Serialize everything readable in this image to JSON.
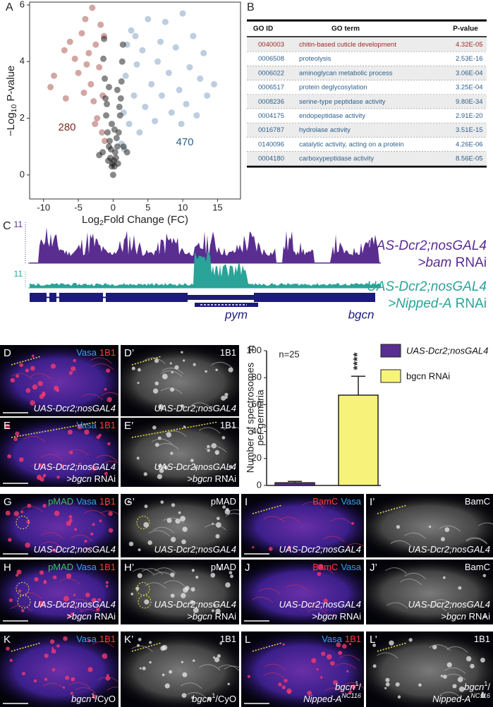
{
  "chart_data": [
    {
      "type": "scatter",
      "letter": "A",
      "x_label": [
        {
          "text": "Log"
        },
        {
          "text": "2",
          "sub": true
        },
        {
          "text": "Fold Change (FC)"
        }
      ],
      "y_label": [
        {
          "text": "−Log"
        },
        {
          "text": "10",
          "sub": true
        },
        {
          "text": " P-value"
        }
      ],
      "xlim": [
        -12,
        18.3
      ],
      "ylim": [
        -0.85,
        6.1
      ],
      "xticks": [
        -10,
        -5,
        0,
        5,
        10,
        15
      ],
      "yticks": [
        0,
        2,
        4,
        6
      ],
      "annotations": [
        {
          "text": "280",
          "color": "#7d2a20"
        },
        {
          "text": "470",
          "color": "#2c5f8c"
        }
      ],
      "series": [
        {
          "color": "#9e3a33",
          "x": [
            -9,
            -8.5,
            -7,
            -6.2,
            -5.5,
            -5,
            -4.5,
            -4,
            -3.5,
            -3.2,
            -3,
            -2.8,
            -2.5,
            -2.3,
            -2,
            -1.8,
            -1.6,
            -1.5,
            -1.3,
            -1.2,
            -4.2,
            -6.8,
            -2.6,
            -3.8
          ],
          "values": [
            3.1,
            3.5,
            4.4,
            4.7,
            4.1,
            3.6,
            5.0,
            5.5,
            4.3,
            3.2,
            5.9,
            2.6,
            4.6,
            2.0,
            3.8,
            5.3,
            1.5,
            2.8,
            4.9,
            1.2,
            2.9,
            2.7,
            1.8,
            3.9
          ]
        },
        {
          "color": "#6a92b8",
          "x": [
            1.2,
            1.5,
            1.8,
            2,
            2.3,
            2.6,
            3,
            3.4,
            3.8,
            4.2,
            4.6,
            5,
            5.5,
            6,
            6.4,
            7,
            7.5,
            8,
            8.4,
            9,
            9.5,
            10,
            10.5,
            11,
            11.5,
            12,
            12.5,
            13,
            13.5,
            14.5,
            3.2,
            6.8,
            9.8,
            1.6
          ],
          "values": [
            1.1,
            2.2,
            3.5,
            4.6,
            1.8,
            5.1,
            2.8,
            3.9,
            1.5,
            4.4,
            2.4,
            5.5,
            3.2,
            1.9,
            4.0,
            2.8,
            5.4,
            3.6,
            2.2,
            4.5,
            3.0,
            5.7,
            2.5,
            3.8,
            4.9,
            2.1,
            3.4,
            4.3,
            2.8,
            3.2,
            4.9,
            4.7,
            1.8,
            0.9
          ]
        },
        {
          "color": "#111111",
          "x": [
            0,
            0.2,
            -0.2,
            0.4,
            -0.4,
            0.6,
            -0.6,
            0.8,
            -0.8,
            1,
            -1,
            1.1,
            -1.1,
            1.2,
            -1.2,
            1.3,
            -1.4,
            0.9,
            -0.9,
            0.5,
            -0.5,
            0.3,
            -0.3,
            0.1,
            -0.1,
            0.7,
            -0.7,
            1.5,
            -1.5,
            1.4,
            -1.3,
            0.2,
            -0.2,
            0.6,
            -0.6,
            2.0,
            -2.0
          ],
          "values": [
            0,
            0.3,
            0.3,
            0.6,
            0.6,
            1.0,
            1.0,
            1.5,
            1.5,
            2.1,
            2.1,
            2.7,
            2.7,
            3.3,
            3.4,
            4.0,
            4.1,
            2.4,
            2.5,
            1.3,
            1.2,
            0.8,
            0.9,
            0.5,
            0.4,
            0.4,
            0.5,
            1.0,
            0.8,
            4.6,
            4.8,
            1.6,
            1.8,
            3.0,
            3.1,
            0.8,
            0.7
          ]
        }
      ]
    },
    {
      "type": "bar",
      "letter": "F",
      "y_label": [
        "Number of spectrosomes",
        "per germaria"
      ],
      "annotations": [
        "n=25",
        "****"
      ],
      "ylim": [
        0,
        100
      ],
      "yticks": [
        0,
        20,
        40,
        60,
        80,
        100
      ],
      "series": [
        {
          "name": "UAS-Dcr2;nosGAL4",
          "color": "#5a2d91",
          "values": [
            2
          ],
          "errors": [
            1
          ]
        },
        {
          "name": "bgcn RNAi",
          "color": "#f7f37a",
          "values": [
            67
          ],
          "errors": [
            14
          ]
        }
      ]
    }
  ],
  "go_table": {
    "letter": "B",
    "header": [
      "GO ID",
      "GO term",
      "P-value"
    ],
    "rows": [
      [
        "0040003",
        "chitin-based cuticle development",
        "4.32E-05"
      ],
      [
        "0006508",
        "proteolysis",
        "2.53E-16"
      ],
      [
        "0006022",
        "aminoglycan metabolic process",
        "3.06E-04"
      ],
      [
        "0006517",
        "protein deglycosylation",
        "3.25E-04"
      ],
      [
        "0008236",
        "serine-type peptidase activity",
        "9.80E-34"
      ],
      [
        "0004175",
        "endopeptidase activity",
        "2.91E-20"
      ],
      [
        "0016787",
        "hydrolase activity",
        "3.51E-15"
      ],
      [
        "0140096",
        "catalytic activity, acting on a protein",
        "4.26E-06"
      ],
      [
        "0004180",
        "carboxypeptidase activity",
        "8.56E-05"
      ]
    ],
    "row_colors": [
      "#9a2a22",
      "#2c5f8c",
      "#2c5f8c",
      "#2c5f8c",
      "#2c5f8c",
      "#2c5f8c",
      "#2c5f8c",
      "#2c5f8c",
      "#2c5f8c"
    ]
  },
  "tracks": {
    "letter": "C",
    "items": [
      {
        "max_label": "11",
        "color": "#5a2d91",
        "label": [
          [
            {
              "text": "UAS-Dcr2;nosGAL4",
              "italic": true
            }
          ],
          [
            {
              "text": ">bam",
              "italic": true
            },
            {
              "text": " RNAi"
            }
          ]
        ]
      },
      {
        "max_label": "11",
        "color": "#2aa398",
        "label": [
          [
            {
              "text": "UAS-Dcr2;nosGAL4",
              "italic": true
            }
          ],
          [
            {
              "text": ">Nipped-A",
              "italic": true
            },
            {
              "text": " RNAi"
            }
          ]
        ]
      }
    ],
    "genes": [
      "pym",
      "bgcn"
    ]
  },
  "panels": [
    {
      "letter": "D",
      "channels": [
        {
          "text": "Vasa",
          "color": "#39a2f0"
        },
        {
          "text": "1B1",
          "color": "#ff3b3b"
        }
      ],
      "genotype": [
        [
          {
            "text": "UAS-Dcr2;nosGAL4",
            "italic": true
          }
        ]
      ]
    },
    {
      "letter": "D’",
      "channels": [
        {
          "text": "1B1",
          "color": "#ffffff"
        }
      ],
      "genotype": [
        [
          {
            "text": "UAS-Dcr2;nosGAL4",
            "italic": true
          }
        ]
      ]
    },
    {
      "letter": "E",
      "channels": [
        {
          "text": "Vasa",
          "color": "#39a2f0"
        },
        {
          "text": "1B1",
          "color": "#ff3b3b"
        }
      ],
      "genotype": [
        [
          {
            "text": "UAS-Dcr2;nosGAL4",
            "italic": true
          }
        ],
        [
          {
            "text": ">bgcn",
            "italic": true
          },
          {
            "text": " RNAi"
          }
        ]
      ]
    },
    {
      "letter": "E’",
      "channels": [
        {
          "text": "1B1",
          "color": "#ffffff"
        }
      ],
      "genotype": [
        [
          {
            "text": "UAS-Dcr2;nosGAL4",
            "italic": true
          }
        ],
        [
          {
            "text": ">bgcn",
            "italic": true
          },
          {
            "text": " RNAi"
          }
        ]
      ]
    },
    {
      "letter": "G",
      "channels": [
        {
          "text": "pMAD",
          "color": "#3cc060"
        },
        {
          "text": "Vasa",
          "color": "#39a2f0"
        },
        {
          "text": "1B1",
          "color": "#ff3b3b"
        }
      ],
      "genotype": [
        [
          {
            "text": "UAS-Dcr2;nosGAL4",
            "italic": true
          }
        ]
      ]
    },
    {
      "letter": "G’",
      "channels": [
        {
          "text": "pMAD",
          "color": "#ffffff"
        }
      ],
      "genotype": [
        [
          {
            "text": "UAS-Dcr2;nosGAL4",
            "italic": true
          }
        ]
      ]
    },
    {
      "letter": "H",
      "channels": [
        {
          "text": "pMAD",
          "color": "#3cc060"
        },
        {
          "text": "Vasa",
          "color": "#39a2f0"
        },
        {
          "text": "1B1",
          "color": "#ff3b3b"
        }
      ],
      "genotype": [
        [
          {
            "text": "UAS-Dcr2;nosGAL4",
            "italic": true
          }
        ],
        [
          {
            "text": ">bgcn",
            "italic": true
          },
          {
            "text": " RNAi"
          }
        ]
      ]
    },
    {
      "letter": "H’",
      "channels": [
        {
          "text": "pMAD",
          "color": "#ffffff"
        }
      ],
      "genotype": [
        [
          {
            "text": "UAS-Dcr2;nosGAL4",
            "italic": true
          }
        ],
        [
          {
            "text": ">bgcn",
            "italic": true
          },
          {
            "text": " RNAi"
          }
        ]
      ]
    },
    {
      "letter": "I",
      "channels": [
        {
          "text": "BamC",
          "color": "#ff3b3b"
        },
        {
          "text": "Vasa",
          "color": "#39a2f0"
        }
      ],
      "genotype": [
        [
          {
            "text": "UAS-Dcr2;nosGAL4",
            "italic": true
          }
        ]
      ]
    },
    {
      "letter": "I’",
      "channels": [
        {
          "text": "BamC",
          "color": "#ffffff"
        }
      ],
      "genotype": [
        [
          {
            "text": "UAS-Dcr2;nosGAL4",
            "italic": true
          }
        ]
      ]
    },
    {
      "letter": "J",
      "channels": [
        {
          "text": "BamC",
          "color": "#ff3b3b"
        },
        {
          "text": "Vasa",
          "color": "#39a2f0"
        }
      ],
      "genotype": [
        [
          {
            "text": "UAS-Dcr2;nosGAL4",
            "italic": true
          }
        ],
        [
          {
            "text": ">bgcn",
            "italic": true
          },
          {
            "text": " RNAi"
          }
        ]
      ]
    },
    {
      "letter": "J’",
      "channels": [
        {
          "text": "BamC",
          "color": "#ffffff"
        }
      ],
      "genotype": [
        [
          {
            "text": "UAS-Dcr2;nosGAL4",
            "italic": true
          }
        ],
        [
          {
            "text": ">bgcn",
            "italic": true
          },
          {
            "text": " RNAi"
          }
        ]
      ]
    },
    {
      "letter": "K",
      "channels": [
        {
          "text": "Vasa",
          "color": "#39a2f0"
        },
        {
          "text": "1B1",
          "color": "#ff3b3b"
        }
      ],
      "genotype": [
        [
          {
            "text": "bgcn",
            "italic": true
          },
          {
            "text": "1",
            "sup": true
          },
          {
            "text": "/CyO"
          }
        ]
      ]
    },
    {
      "letter": "K’",
      "channels": [
        {
          "text": "1B1",
          "color": "#ffffff"
        }
      ],
      "genotype": [
        [
          {
            "text": "bgcn",
            "italic": true
          },
          {
            "text": "1",
            "sup": true
          },
          {
            "text": "/CyO"
          }
        ]
      ]
    },
    {
      "letter": "L",
      "channels": [
        {
          "text": "Vasa",
          "color": "#39a2f0"
        },
        {
          "text": "1B1",
          "color": "#ff3b3b"
        }
      ],
      "genotype": [
        [
          {
            "text": "bgcn",
            "italic": true
          },
          {
            "text": "1",
            "sup": true
          },
          {
            "text": "/"
          }
        ],
        [
          {
            "text": "Nipped-A",
            "italic": true
          },
          {
            "text": "NC116",
            "italic": true,
            "sup": true
          }
        ]
      ]
    },
    {
      "letter": "L’",
      "channels": [
        {
          "text": "1B1",
          "color": "#ffffff"
        }
      ],
      "genotype": [
        [
          {
            "text": "bgcn",
            "italic": true
          },
          {
            "text": "1",
            "sup": true
          },
          {
            "text": "/"
          }
        ],
        [
          {
            "text": "Nipped-A",
            "italic": true
          },
          {
            "text": "NC116",
            "italic": true,
            "sup": true
          }
        ]
      ]
    }
  ]
}
